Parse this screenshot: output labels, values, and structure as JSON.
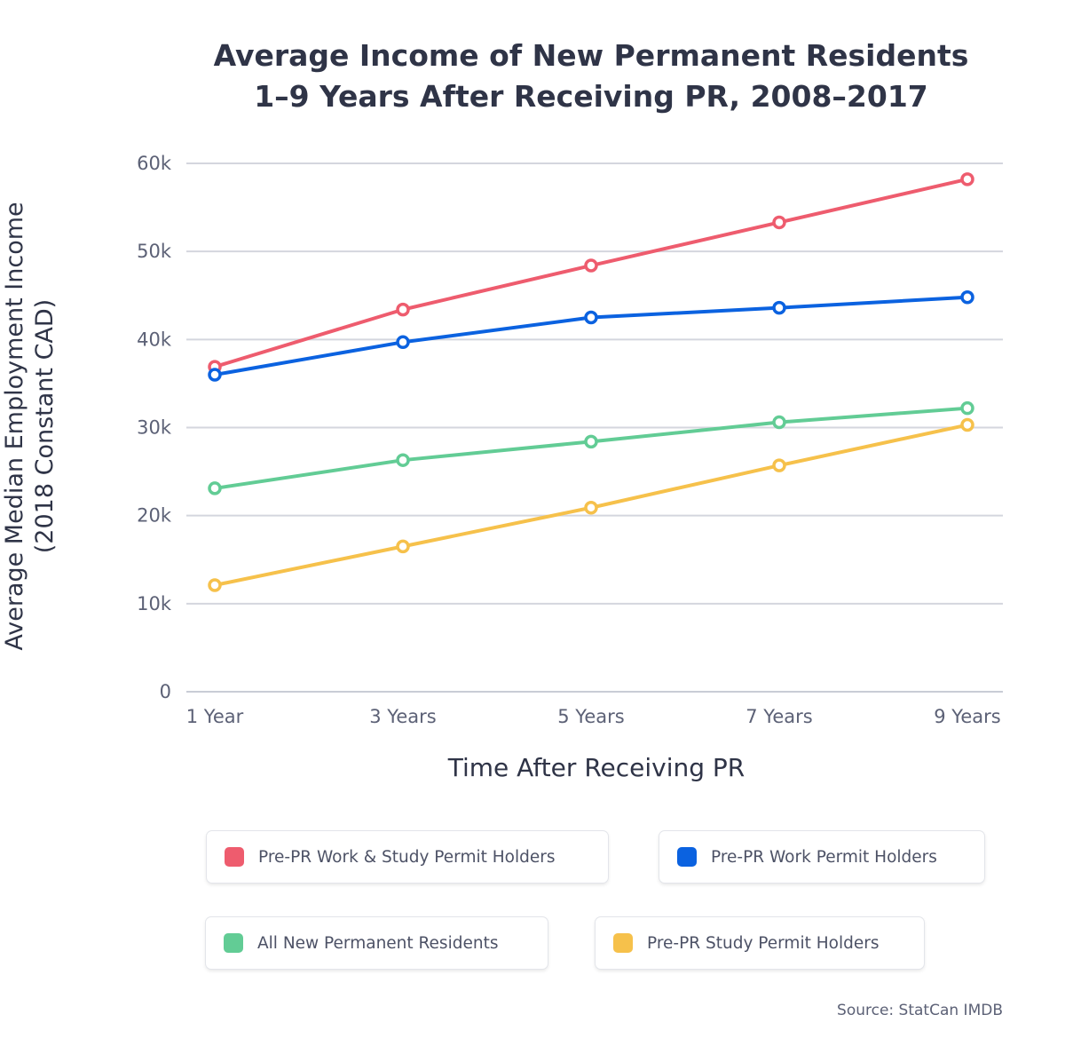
{
  "title_line1": "Average Income of New Permanent Residents",
  "title_line2": "1–9 Years After Receiving PR, 2008–2017",
  "source": "Source: StatCan IMDB",
  "chart_data": {
    "type": "line",
    "title": "Average Income of New Permanent Residents 1–9 Years After Receiving PR, 2008–2017",
    "xlabel": "Time After Receiving PR",
    "ylabel": [
      "Average Median Employment Income",
      "(2018 Constant CAD)"
    ],
    "categories": [
      "1 Year",
      "3 Years",
      "5 Years",
      "7 Years",
      "9 Years"
    ],
    "yticks": [
      "0",
      "10k",
      "20k",
      "30k",
      "40k",
      "50k",
      "60k"
    ],
    "ylim": [
      0,
      60000
    ],
    "grid": true,
    "legend_placement": "bottom",
    "series": [
      {
        "name": "Pre-PR Work & Study Permit Holders",
        "color": "#ee5c6e",
        "values": [
          36900,
          43400,
          48400,
          53300,
          58200
        ]
      },
      {
        "name": "Pre-PR Work Permit Holders",
        "color": "#0b62e0",
        "values": [
          36000,
          39700,
          42500,
          43600,
          44800
        ]
      },
      {
        "name": "All New Permanent Residents",
        "color": "#62cc95",
        "values": [
          23100,
          26300,
          28400,
          30600,
          32200
        ]
      },
      {
        "name": "Pre-PR Study Permit Holders",
        "color": "#f6c14b",
        "values": [
          12100,
          16500,
          20900,
          25700,
          30300
        ]
      }
    ]
  }
}
